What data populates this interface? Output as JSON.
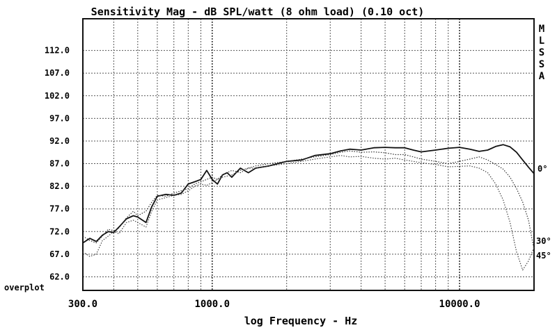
{
  "chart_data": {
    "type": "line",
    "title": "Sensitivity Mag - dB SPL/watt (8 ohm load) (0.10 oct)",
    "xlabel": "log Frequency - Hz",
    "ylabel": "",
    "overplot_label": "overplot",
    "x_scale": "log",
    "xlim": [
      300,
      20000
    ],
    "ylim": [
      59,
      119
    ],
    "grid": true,
    "x_tick_labels": [
      {
        "value": 300,
        "label": "300.0"
      },
      {
        "value": 1000,
        "label": "1000.0"
      },
      {
        "value": 10000,
        "label": "10000.0"
      }
    ],
    "x_minor_ticks": [
      400,
      500,
      600,
      700,
      800,
      900,
      2000,
      3000,
      4000,
      5000,
      6000,
      7000,
      8000,
      9000,
      20000
    ],
    "y_ticks": [
      {
        "value": 112,
        "label": "112.0"
      },
      {
        "value": 107,
        "label": "107.0"
      },
      {
        "value": 102,
        "label": "102.0"
      },
      {
        "value": 97,
        "label": "97.0"
      },
      {
        "value": 92,
        "label": "92.0"
      },
      {
        "value": 87,
        "label": "87.0"
      },
      {
        "value": 82,
        "label": "82.0"
      },
      {
        "value": 77,
        "label": "77.0"
      },
      {
        "value": 72,
        "label": "72.0"
      },
      {
        "value": 67,
        "label": "67.0"
      },
      {
        "value": 62,
        "label": "62.0"
      }
    ],
    "right_letters": [
      "M",
      "L",
      "S",
      "S",
      "A"
    ],
    "series": [
      {
        "name": "0°",
        "style": "solid",
        "color": "#111111",
        "points": [
          [
            300,
            69.5
          ],
          [
            320,
            70.5
          ],
          [
            340,
            69.8
          ],
          [
            360,
            71.2
          ],
          [
            380,
            72.0
          ],
          [
            400,
            71.8
          ],
          [
            420,
            73.0
          ],
          [
            450,
            74.8
          ],
          [
            480,
            75.5
          ],
          [
            500,
            75.2
          ],
          [
            540,
            74.0
          ],
          [
            570,
            77.5
          ],
          [
            600,
            79.8
          ],
          [
            650,
            80.2
          ],
          [
            700,
            80.0
          ],
          [
            750,
            80.5
          ],
          [
            800,
            82.5
          ],
          [
            850,
            83.0
          ],
          [
            900,
            83.5
          ],
          [
            950,
            85.5
          ],
          [
            1000,
            83.5
          ],
          [
            1050,
            82.5
          ],
          [
            1100,
            84.5
          ],
          [
            1150,
            85.0
          ],
          [
            1200,
            84.0
          ],
          [
            1300,
            86.0
          ],
          [
            1400,
            85.0
          ],
          [
            1500,
            86.0
          ],
          [
            1700,
            86.5
          ],
          [
            2000,
            87.5
          ],
          [
            2300,
            87.8
          ],
          [
            2600,
            88.8
          ],
          [
            3000,
            89.2
          ],
          [
            3300,
            89.8
          ],
          [
            3600,
            90.2
          ],
          [
            4000,
            90.0
          ],
          [
            4500,
            90.5
          ],
          [
            5000,
            90.6
          ],
          [
            5500,
            90.5
          ],
          [
            6000,
            90.5
          ],
          [
            6500,
            90.0
          ],
          [
            7000,
            89.6
          ],
          [
            8000,
            90.0
          ],
          [
            9000,
            90.4
          ],
          [
            10000,
            90.6
          ],
          [
            11000,
            90.2
          ],
          [
            12000,
            89.7
          ],
          [
            13000,
            90.0
          ],
          [
            14000,
            90.8
          ],
          [
            15000,
            91.2
          ],
          [
            16000,
            90.7
          ],
          [
            17000,
            89.5
          ],
          [
            18000,
            87.8
          ],
          [
            19000,
            86.2
          ],
          [
            20000,
            84.8
          ]
        ]
      },
      {
        "name": "30°",
        "style": "dotted",
        "color": "#333333",
        "points": [
          [
            300,
            71.0
          ],
          [
            320,
            70.0
          ],
          [
            340,
            69.5
          ],
          [
            360,
            71.0
          ],
          [
            380,
            72.5
          ],
          [
            400,
            72.2
          ],
          [
            420,
            72.8
          ],
          [
            450,
            75.0
          ],
          [
            480,
            76.5
          ],
          [
            500,
            75.5
          ],
          [
            540,
            76.5
          ],
          [
            570,
            78.5
          ],
          [
            600,
            80.0
          ],
          [
            650,
            79.8
          ],
          [
            700,
            80.5
          ],
          [
            750,
            81.0
          ],
          [
            800,
            81.5
          ],
          [
            850,
            82.5
          ],
          [
            900,
            83.0
          ],
          [
            950,
            83.5
          ],
          [
            1000,
            84.0
          ],
          [
            1050,
            83.5
          ],
          [
            1100,
            84.5
          ],
          [
            1200,
            85.5
          ],
          [
            1300,
            85.0
          ],
          [
            1400,
            86.0
          ],
          [
            1500,
            86.5
          ],
          [
            1700,
            87.0
          ],
          [
            2000,
            87.5
          ],
          [
            2300,
            88.0
          ],
          [
            2600,
            88.5
          ],
          [
            3000,
            89.0
          ],
          [
            3300,
            89.5
          ],
          [
            3600,
            89.8
          ],
          [
            4000,
            89.5
          ],
          [
            4500,
            89.6
          ],
          [
            5000,
            89.4
          ],
          [
            5500,
            89.0
          ],
          [
            6000,
            89.0
          ],
          [
            6500,
            88.5
          ],
          [
            7000,
            88.0
          ],
          [
            8000,
            87.5
          ],
          [
            9000,
            87.0
          ],
          [
            10000,
            87.5
          ],
          [
            11000,
            88.0
          ],
          [
            12000,
            88.5
          ],
          [
            13000,
            87.8
          ],
          [
            14000,
            86.8
          ],
          [
            15000,
            85.8
          ],
          [
            16000,
            84.0
          ],
          [
            17000,
            81.5
          ],
          [
            18000,
            78.5
          ],
          [
            19000,
            74.5
          ],
          [
            20000,
            68.0
          ]
        ]
      },
      {
        "name": "45°",
        "style": "dotted",
        "color": "#444444",
        "points": [
          [
            300,
            67.5
          ],
          [
            320,
            66.5
          ],
          [
            340,
            67.0
          ],
          [
            360,
            70.0
          ],
          [
            380,
            71.0
          ],
          [
            400,
            72.0
          ],
          [
            420,
            71.5
          ],
          [
            450,
            74.0
          ],
          [
            480,
            74.5
          ],
          [
            500,
            74.0
          ],
          [
            540,
            73.0
          ],
          [
            570,
            76.5
          ],
          [
            600,
            79.0
          ],
          [
            650,
            79.5
          ],
          [
            700,
            80.0
          ],
          [
            750,
            80.2
          ],
          [
            800,
            81.0
          ],
          [
            850,
            82.0
          ],
          [
            900,
            82.5
          ],
          [
            950,
            82.2
          ],
          [
            1000,
            82.8
          ],
          [
            1050,
            83.5
          ],
          [
            1100,
            84.0
          ],
          [
            1200,
            84.5
          ],
          [
            1300,
            85.5
          ],
          [
            1400,
            86.0
          ],
          [
            1500,
            86.0
          ],
          [
            1700,
            86.5
          ],
          [
            2000,
            87.0
          ],
          [
            2300,
            87.5
          ],
          [
            2600,
            88.0
          ],
          [
            3000,
            88.5
          ],
          [
            3300,
            88.8
          ],
          [
            3600,
            88.5
          ],
          [
            4000,
            88.6
          ],
          [
            4500,
            88.2
          ],
          [
            5000,
            88.0
          ],
          [
            5500,
            88.2
          ],
          [
            6000,
            87.8
          ],
          [
            6500,
            87.5
          ],
          [
            7000,
            87.2
          ],
          [
            8000,
            86.8
          ],
          [
            9000,
            86.3
          ],
          [
            10000,
            86.4
          ],
          [
            11000,
            86.5
          ],
          [
            12000,
            86.0
          ],
          [
            13000,
            85.0
          ],
          [
            14000,
            82.5
          ],
          [
            15000,
            79.0
          ],
          [
            16000,
            74.0
          ],
          [
            17000,
            67.5
          ],
          [
            18000,
            63.5
          ],
          [
            19000,
            65.5
          ],
          [
            20000,
            68.5
          ]
        ]
      }
    ],
    "right_labels": [
      {
        "text": "0°",
        "series": "0°"
      },
      {
        "text": "30°",
        "series": "30°"
      },
      {
        "text": "45°",
        "series": "45°"
      }
    ]
  }
}
